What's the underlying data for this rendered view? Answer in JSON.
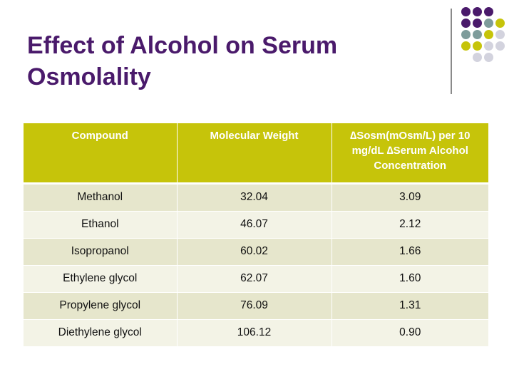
{
  "slide": {
    "title_line1": "Effect of Alcohol on Serum",
    "title_line2": "Osmolality"
  },
  "colors": {
    "title": "#4a1a6b",
    "header_bg": "#c6c40a",
    "row_odd": "#e6e6cc",
    "row_even": "#f3f3e6",
    "dot_purple": "#4a1a6b",
    "dot_teal": "#7e9c9b",
    "dot_olive": "#c6c40a",
    "dot_grey": "#d3d3de",
    "divider": "#8a8a8a"
  },
  "table": {
    "headers": [
      "Compound",
      "Molecular Weight",
      "∆Sosm(mOsm/L) per 10 mg/dL ∆Serum Alcohol Concentration"
    ],
    "rows": [
      [
        "Methanol",
        "32.04",
        "3.09"
      ],
      [
        "Ethanol",
        "46.07",
        "2.12"
      ],
      [
        "Isopropanol",
        "60.02",
        "1.66"
      ],
      [
        "Ethylene glycol",
        "62.07",
        "1.60"
      ],
      [
        "Propylene glycol",
        "76.09",
        "1.31"
      ],
      [
        "Diethylene glycol",
        "106.12",
        "0.90"
      ]
    ]
  }
}
